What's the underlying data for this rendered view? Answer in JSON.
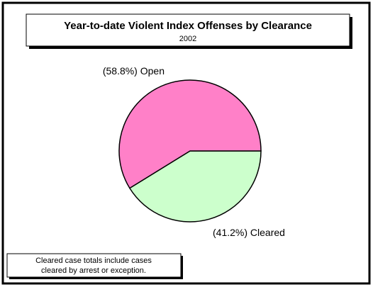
{
  "chart_data": {
    "type": "pie",
    "title": "Year-to-date Violent Index Offenses by Clearance",
    "subtitle": "2002",
    "categories": [
      "Cleared",
      "Open"
    ],
    "values": [
      41.2,
      58.8
    ],
    "value_labels": [
      "(41.2%)",
      "(58.8%)"
    ],
    "colors": [
      "#ccffcc",
      "#ff80c8"
    ],
    "note": [
      "Cleared case totals include cases",
      "cleared by arrest or exception."
    ]
  }
}
